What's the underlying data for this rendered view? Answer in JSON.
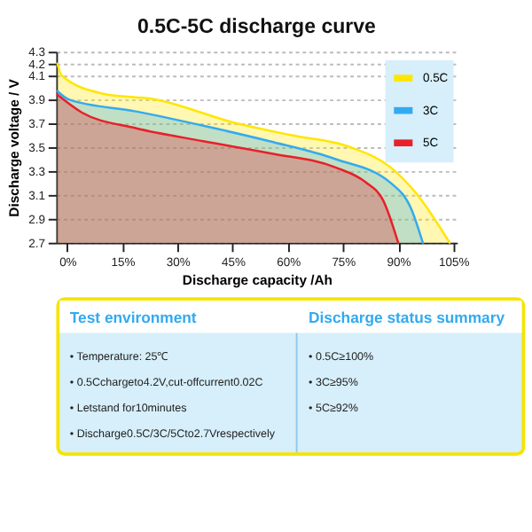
{
  "chart_data": {
    "type": "area",
    "title": "0.5C-5C discharge curve",
    "xlabel": "Discharge capacity /Ah",
    "ylabel": "Discharge voltage / V",
    "xlim": [
      -3,
      106
    ],
    "ylim": [
      2.7,
      4.3
    ],
    "xticks": [
      {
        "value": 0,
        "label": "0%"
      },
      {
        "value": 15,
        "label": "15%"
      },
      {
        "value": 30,
        "label": "30%"
      },
      {
        "value": 45,
        "label": "45%"
      },
      {
        "value": 60,
        "label": "60%"
      },
      {
        "value": 75,
        "label": "75%"
      },
      {
        "value": 90,
        "label": "90%"
      },
      {
        "value": 105,
        "label": "105%"
      }
    ],
    "yticks": [
      2.7,
      2.9,
      3.1,
      3.3,
      3.5,
      3.7,
      3.9,
      4.1,
      4.2,
      4.3
    ],
    "grid": "y",
    "legend": "top right",
    "line_style": "solid",
    "marker": "none",
    "series": [
      {
        "name": "0.5C",
        "color": "#ffe600",
        "x": [
          -2.7,
          -1.5,
          9.5,
          24,
          46,
          61,
          77,
          88,
          95,
          104
        ],
        "values": [
          4.2,
          4.1,
          3.95,
          3.9,
          3.7,
          3.6,
          3.5,
          3.33,
          3.11,
          2.7
        ]
      },
      {
        "name": "3C",
        "color": "#33aaf0",
        "x": [
          -2.7,
          0.4,
          18.6,
          37,
          55,
          73,
          88,
          93.6,
          96.7
        ],
        "values": [
          3.97,
          3.9,
          3.8,
          3.68,
          3.55,
          3.4,
          3.2,
          2.98,
          2.7
        ]
      },
      {
        "name": "5C",
        "color": "#e8202a",
        "x": [
          -2.7,
          4,
          18.6,
          37,
          55,
          73,
          81,
          86,
          90
        ],
        "values": [
          3.94,
          3.79,
          3.66,
          3.55,
          3.45,
          3.33,
          3.21,
          3.05,
          2.7
        ]
      }
    ],
    "annotations": [
      "Test environment",
      "• Temperature: 25℃",
      "• 0.5Cchargeto4.2V,cut-offcurrent0.02C",
      "• Letstand for10minutes",
      "• Discharge0.5C/3C/5Cto2.7Vrespectively",
      "Discharge status summary",
      "• 0.5C≥100%",
      "• 3C≥95%",
      "• 5C≥92%"
    ]
  }
}
